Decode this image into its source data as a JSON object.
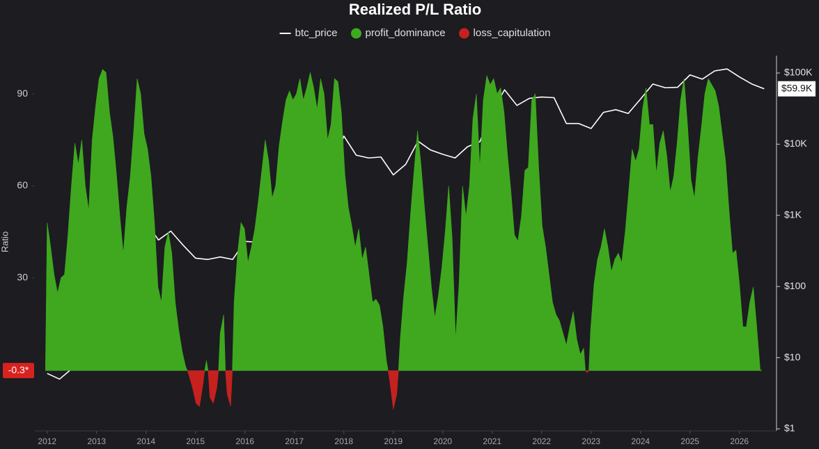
{
  "chart_data": {
    "type": "area",
    "title": "Realized P/L Ratio",
    "ylabel": "Ratio",
    "xlim": [
      2011.75,
      2026.75
    ],
    "xticks": [
      2012,
      2013,
      2014,
      2015,
      2016,
      2017,
      2018,
      2019,
      2020,
      2021,
      2022,
      2023,
      2024,
      2025,
      2026
    ],
    "ylim": [
      -20,
      102.5
    ],
    "yticks": [
      30,
      60,
      90
    ],
    "y2lim": [
      1,
      100000
    ],
    "y2_scale": "log",
    "y2ticks": [
      {
        "value": 1,
        "label": "$1"
      },
      {
        "value": 10,
        "label": "$10"
      },
      {
        "value": 100,
        "label": "$100"
      },
      {
        "value": 1000,
        "label": "$1K"
      },
      {
        "value": 10000,
        "label": "$10K"
      },
      {
        "value": 100000,
        "label": "$100K"
      }
    ],
    "baseline": {
      "value": -0.3,
      "label": "-0.3*"
    },
    "price_marker": {
      "value": 59900,
      "label": "$59.9K"
    },
    "legend": "top",
    "x": [
      2012,
      2012.07,
      2012.14,
      2012.21,
      2012.28,
      2012.35,
      2012.42,
      2012.49,
      2012.56,
      2012.63,
      2012.7,
      2012.77,
      2012.84,
      2012.91,
      2012.98,
      2013.05,
      2013.12,
      2013.19,
      2013.26,
      2013.33,
      2013.4,
      2013.47,
      2013.54,
      2013.61,
      2013.68,
      2013.75,
      2013.82,
      2013.89,
      2013.96,
      2014.03,
      2014.1,
      2014.17,
      2014.24,
      2014.31,
      2014.38,
      2014.45,
      2014.52,
      2014.59,
      2014.66,
      2014.73,
      2014.8,
      2014.87,
      2014.94,
      2015.01,
      2015.08,
      2015.15,
      2015.22,
      2015.29,
      2015.36,
      2015.43,
      2015.5,
      2015.57,
      2015.64,
      2015.71,
      2015.78,
      2015.85,
      2015.92,
      2015.99,
      2016.06,
      2016.13,
      2016.2,
      2016.27,
      2016.34,
      2016.41,
      2016.48,
      2016.55,
      2016.62,
      2016.69,
      2016.76,
      2016.83,
      2016.9,
      2016.97,
      2017.04,
      2017.11,
      2017.18,
      2017.25,
      2017.32,
      2017.39,
      2017.46,
      2017.53,
      2017.6,
      2017.67,
      2017.74,
      2017.81,
      2017.88,
      2017.95,
      2018.02,
      2018.09,
      2018.16,
      2018.23,
      2018.3,
      2018.37,
      2018.44,
      2018.51,
      2018.58,
      2018.65,
      2018.72,
      2018.79,
      2018.86,
      2018.93,
      2019.0,
      2019.07,
      2019.14,
      2019.21,
      2019.28,
      2019.35,
      2019.42,
      2019.49,
      2019.56,
      2019.63,
      2019.7,
      2019.77,
      2019.84,
      2019.91,
      2019.98,
      2020.05,
      2020.12,
      2020.19,
      2020.26,
      2020.33,
      2020.4,
      2020.47,
      2020.54,
      2020.61,
      2020.68,
      2020.75,
      2020.82,
      2020.89,
      2020.96,
      2021.03,
      2021.1,
      2021.17,
      2021.24,
      2021.31,
      2021.38,
      2021.45,
      2021.52,
      2021.59,
      2021.66,
      2021.73,
      2021.8,
      2021.87,
      2021.94,
      2022.01,
      2022.08,
      2022.15,
      2022.22,
      2022.29,
      2022.36,
      2022.43,
      2022.5,
      2022.57,
      2022.64,
      2022.71,
      2022.78,
      2022.85,
      2022.92,
      2022.99,
      2023.06,
      2023.13,
      2023.2,
      2023.27,
      2023.34,
      2023.41,
      2023.48,
      2023.55,
      2023.62,
      2023.69,
      2023.76,
      2023.83,
      2023.9,
      2023.97,
      2024.04,
      2024.11,
      2024.18,
      2024.25,
      2024.32,
      2024.39,
      2024.46,
      2024.53,
      2024.6,
      2024.67,
      2024.74,
      2024.81,
      2024.88,
      2024.95,
      2025.02,
      2025.09,
      2025.16,
      2025.23,
      2025.3,
      2025.37,
      2025.44,
      2025.51,
      2025.58,
      2025.65,
      2025.72,
      2025.79,
      2025.86,
      2025.93,
      2026.0,
      2026.07,
      2026.14,
      2026.21,
      2026.28,
      2026.35,
      2026.42
    ],
    "series": [
      {
        "name": "btc_price",
        "color": "#ffffff",
        "axis": "y2",
        "x": [
          2012,
          2012.25,
          2012.5,
          2012.75,
          2013,
          2013.25,
          2013.5,
          2013.75,
          2014,
          2014.25,
          2014.5,
          2014.75,
          2015,
          2015.25,
          2015.5,
          2015.75,
          2016,
          2016.25,
          2016.5,
          2016.75,
          2017,
          2017.25,
          2017.5,
          2017.75,
          2018,
          2018.25,
          2018.5,
          2018.75,
          2019,
          2019.25,
          2019.5,
          2019.75,
          2020,
          2020.25,
          2020.5,
          2020.75,
          2021,
          2021.25,
          2021.5,
          2021.75,
          2022,
          2022.25,
          2022.5,
          2022.75,
          2023,
          2023.25,
          2023.5,
          2023.75,
          2024,
          2024.25,
          2024.5,
          2024.75,
          2025,
          2025.25,
          2025.5,
          2025.75,
          2026,
          2026.25,
          2026.5
        ],
        "values": [
          6,
          5,
          7,
          12,
          13,
          100,
          90,
          130,
          800,
          450,
          600,
          380,
          250,
          240,
          260,
          240,
          430,
          420,
          650,
          610,
          1000,
          1200,
          2500,
          4300,
          13000,
          7000,
          6400,
          6600,
          3700,
          5200,
          11000,
          8300,
          7200,
          6400,
          9200,
          10800,
          29000,
          58000,
          35000,
          44000,
          46000,
          45000,
          19500,
          19500,
          16600,
          28000,
          30500,
          27000,
          43000,
          70000,
          62000,
          63000,
          94000,
          82000,
          107000,
          114000,
          88000,
          70000,
          59900
        ]
      },
      {
        "name": "profit_dominance",
        "color": "#3fa81f",
        "values": [
          48,
          40,
          31,
          25,
          30,
          31,
          44,
          60,
          74,
          67,
          75,
          60,
          52,
          75,
          86,
          95,
          98,
          97,
          84,
          76,
          64,
          50,
          38,
          53,
          63,
          78,
          95,
          90,
          77,
          72,
          63,
          48,
          27,
          22,
          40,
          45,
          38,
          22,
          13,
          6,
          1,
          null,
          null,
          null,
          null,
          null,
          3,
          null,
          null,
          null,
          12,
          18,
          null,
          null,
          22,
          38,
          48,
          46,
          35,
          40,
          46,
          55,
          65,
          75,
          68,
          56,
          60,
          73,
          81,
          88,
          91,
          88,
          90,
          95,
          88,
          92,
          97,
          92,
          85,
          95,
          90,
          75,
          80,
          95,
          94,
          84,
          64,
          53,
          47,
          40,
          46,
          36,
          40,
          31,
          22,
          23,
          21,
          14,
          3,
          null,
          null,
          null,
          10,
          24,
          35,
          51,
          65,
          78,
          67,
          53,
          40,
          27,
          17,
          24,
          33,
          45,
          60,
          43,
          10,
          28,
          60,
          50,
          60,
          82,
          90,
          66,
          88,
          96,
          93,
          95,
          90,
          92,
          84,
          70,
          58,
          44,
          42,
          50,
          65,
          66,
          88,
          90,
          66,
          47,
          40,
          31,
          22,
          18,
          16,
          12,
          8,
          14,
          19,
          10,
          5,
          7,
          null,
          13,
          28,
          36,
          40,
          46,
          40,
          32,
          36,
          38,
          35,
          45,
          58,
          72,
          68,
          72,
          85,
          92,
          80,
          80,
          64,
          74,
          78,
          70,
          58,
          63,
          74,
          88,
          95,
          80,
          62,
          56,
          69,
          79,
          90,
          95,
          93,
          91,
          86,
          77,
          68,
          52,
          38,
          39,
          28,
          14,
          14,
          22,
          27,
          14,
          0
        ]
      },
      {
        "name": "loss_capitulation",
        "color": "#c4211f",
        "x": [
          2014.87,
          2014.94,
          2015.01,
          2015.08,
          2015.15,
          2015.22,
          2015.29,
          2015.36,
          2015.43,
          2015.5,
          2015.64,
          2015.71,
          2015.78,
          2018.93,
          2019.0,
          2019.07,
          2022.85,
          2022.92
        ],
        "values": [
          -2,
          -6,
          -11,
          -12,
          -5,
          null,
          -9,
          -11,
          -6,
          null,
          -8,
          -12,
          null,
          -4,
          -13,
          -8,
          null,
          -1
        ]
      }
    ]
  }
}
